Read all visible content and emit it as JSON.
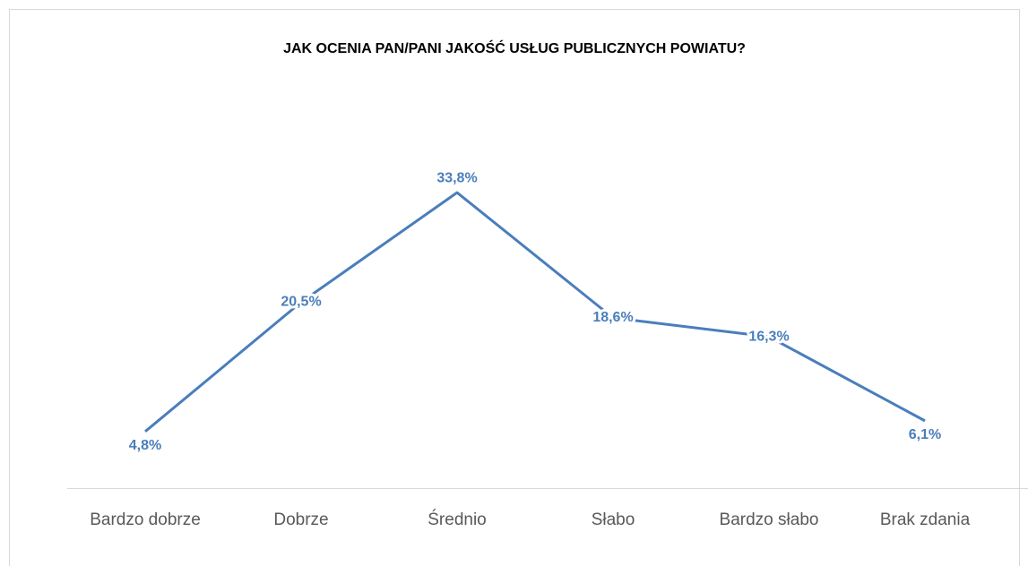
{
  "chart_data": {
    "type": "line",
    "title": "JAK OCENIA PAN/PANI JAKOŚĆ USŁUG PUBLICZNYCH POWIATU?",
    "categories": [
      "Bardzo dobrze",
      "Dobrze",
      "Średnio",
      "Słabo",
      "Bardzo słabo",
      "Brak zdania"
    ],
    "values": [
      4.8,
      20.5,
      33.8,
      18.6,
      16.3,
      6.1
    ],
    "value_labels": [
      "4,8%",
      "20,5%",
      "33,8%",
      "18,6%",
      "16,3%",
      "6,1%"
    ],
    "color": "#4a7ebb"
  }
}
